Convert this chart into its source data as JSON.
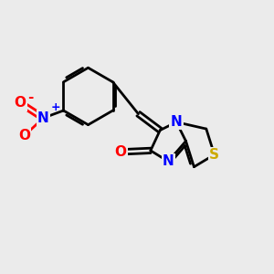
{
  "bg_color": "#ebebeb",
  "bond_color": "#000000",
  "bond_width": 2.0,
  "atom_colors": {
    "N": "#0000ff",
    "O": "#ff0000",
    "S": "#ccaa00",
    "C": "#000000"
  },
  "font_size": 11,
  "fig_size": [
    3.0,
    3.0
  ],
  "dpi": 100
}
